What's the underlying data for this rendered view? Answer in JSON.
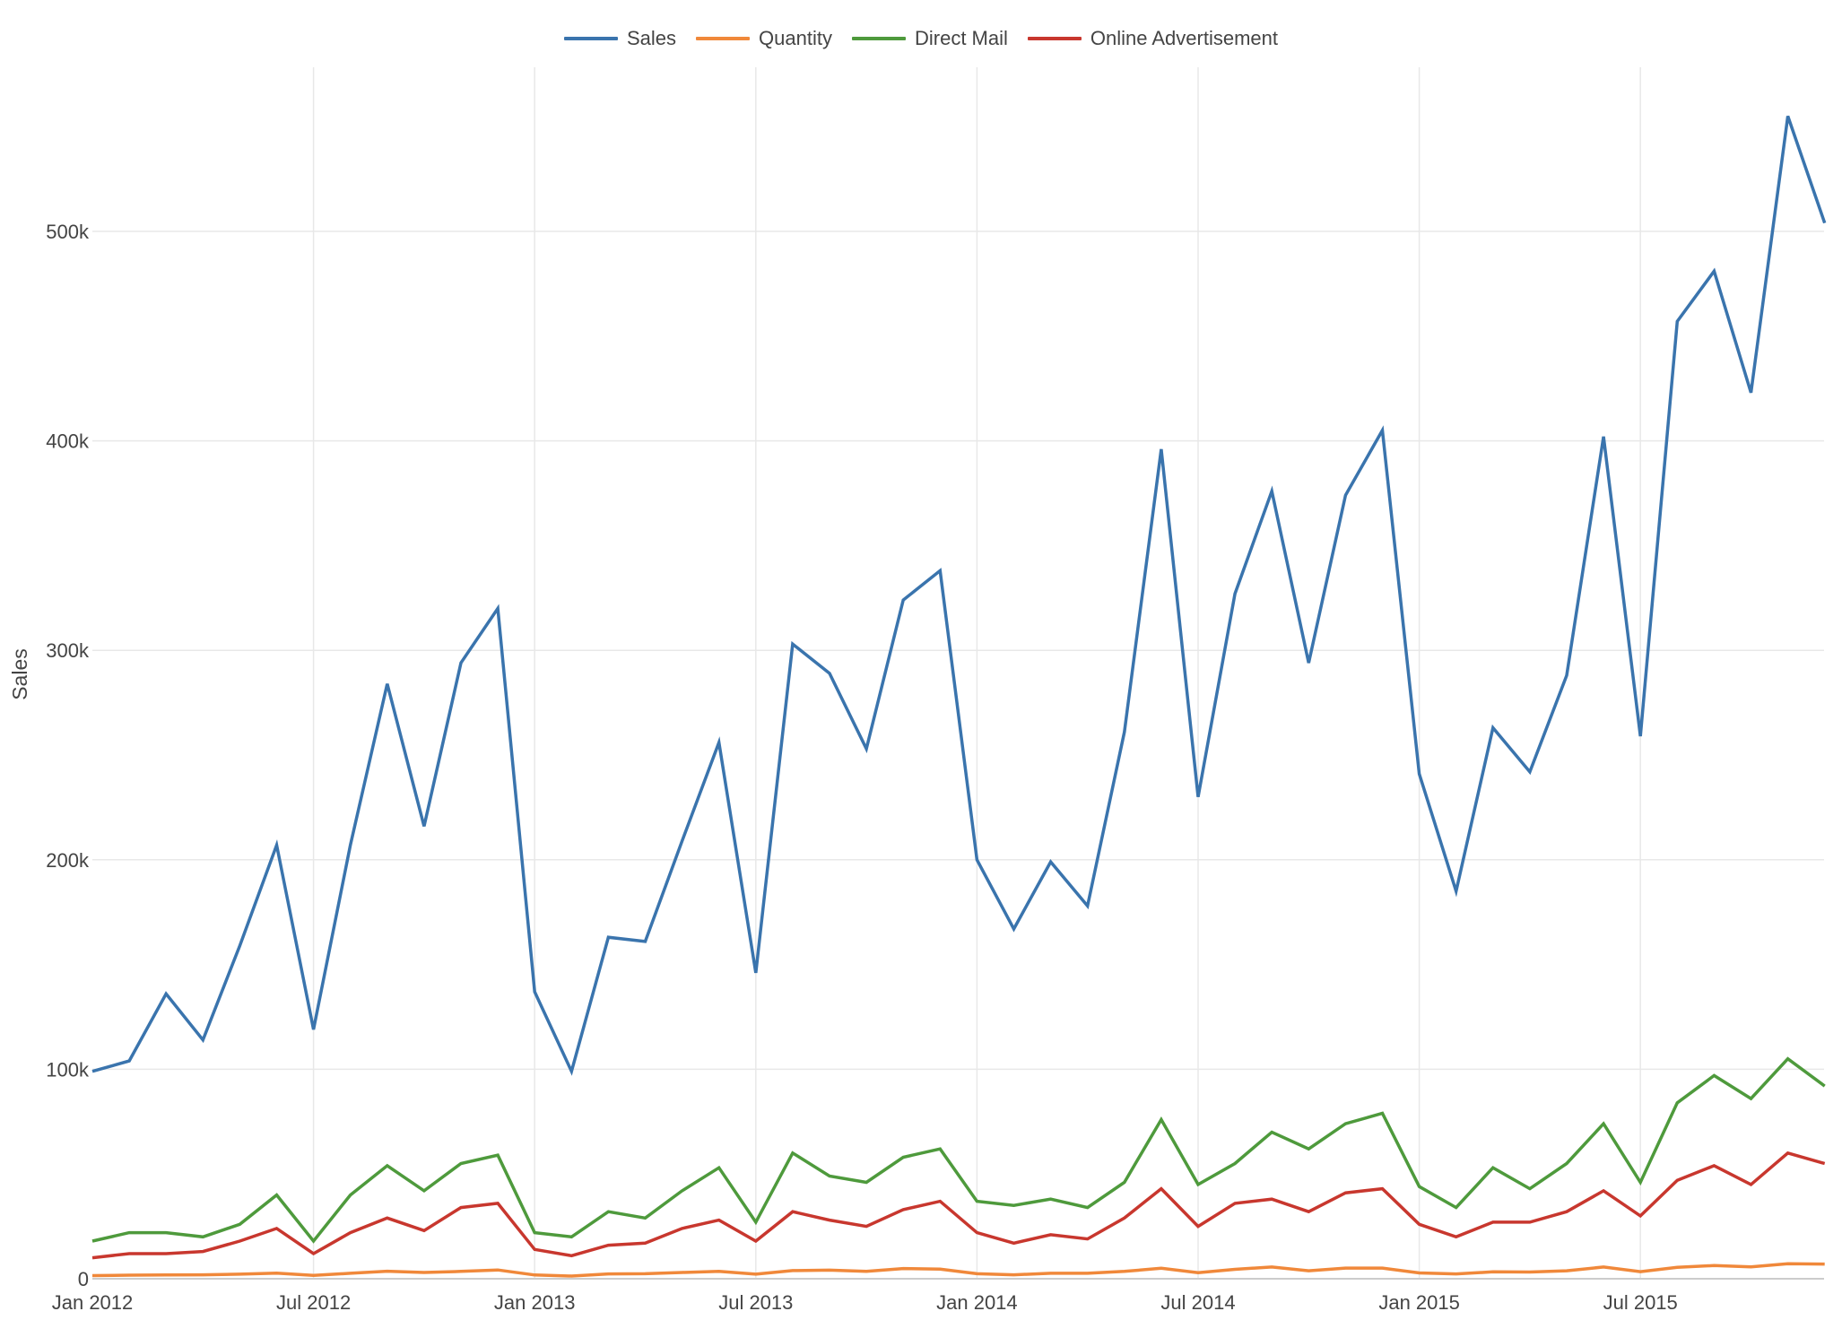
{
  "legend": {
    "items": [
      {
        "label": "Sales",
        "color": "#3a74ad"
      },
      {
        "label": "Quantity",
        "color": "#f0883a"
      },
      {
        "label": "Direct Mail",
        "color": "#4e9a3c"
      },
      {
        "label": "Online Advertisement",
        "color": "#c8372e"
      }
    ]
  },
  "axes": {
    "ylabel": "Sales",
    "yticks": [
      "0",
      "100k",
      "200k",
      "300k",
      "400k",
      "500k"
    ],
    "xticks": [
      "Jan 2012",
      "Jul 2012",
      "Jan 2013",
      "Jul 2013",
      "Jan 2014",
      "Jul 2014",
      "Jan 2015",
      "Jul 2015"
    ]
  },
  "chart_data": {
    "type": "line",
    "title": "",
    "xlabel": "",
    "ylabel": "Sales",
    "ylim": [
      0,
      560000
    ],
    "grid": true,
    "legend_position": "top-center",
    "x": [
      "2012-01",
      "2012-02",
      "2012-03",
      "2012-04",
      "2012-05",
      "2012-06",
      "2012-07",
      "2012-08",
      "2012-09",
      "2012-10",
      "2012-11",
      "2012-12",
      "2013-01",
      "2013-02",
      "2013-03",
      "2013-04",
      "2013-05",
      "2013-06",
      "2013-07",
      "2013-08",
      "2013-09",
      "2013-10",
      "2013-11",
      "2013-12",
      "2014-01",
      "2014-02",
      "2014-03",
      "2014-04",
      "2014-05",
      "2014-06",
      "2014-07",
      "2014-08",
      "2014-09",
      "2014-10",
      "2014-11",
      "2014-12",
      "2015-01",
      "2015-02",
      "2015-03",
      "2015-04",
      "2015-05",
      "2015-06",
      "2015-07",
      "2015-08",
      "2015-09",
      "2015-10",
      "2015-11",
      "2015-12"
    ],
    "x_tick_labels": [
      "Jan 2012",
      "Jul 2012",
      "Jan 2013",
      "Jul 2013",
      "Jan 2014",
      "Jul 2014",
      "Jan 2015",
      "Jul 2015"
    ],
    "y_tick_labels": [
      "0",
      "100k",
      "200k",
      "300k",
      "400k",
      "500k"
    ],
    "series": [
      {
        "name": "Sales",
        "color": "#3a74ad",
        "values": [
          99000,
          104000,
          136000,
          114000,
          159000,
          207000,
          119000,
          207000,
          284000,
          216000,
          294000,
          320000,
          137000,
          99000,
          163000,
          161000,
          209000,
          256000,
          146000,
          303000,
          289000,
          253000,
          324000,
          338000,
          200000,
          167000,
          199000,
          178000,
          261000,
          396000,
          230000,
          327000,
          376000,
          294000,
          374000,
          405000,
          241000,
          185000,
          263000,
          242000,
          288000,
          402000,
          259000,
          457000,
          481000,
          423000,
          555000,
          504000
        ]
      },
      {
        "name": "Quantity",
        "color": "#f0883a",
        "values": [
          1500,
          1700,
          1800,
          1900,
          2200,
          2700,
          1600,
          2600,
          3600,
          3000,
          3500,
          4200,
          1800,
          1300,
          2300,
          2400,
          3000,
          3500,
          2200,
          3900,
          4100,
          3500,
          4900,
          4600,
          2400,
          1900,
          2600,
          2600,
          3500,
          5000,
          2900,
          4500,
          5600,
          3800,
          5100,
          5100,
          2800,
          2300,
          3300,
          3200,
          3800,
          5600,
          3400,
          5500,
          6300,
          5700,
          7200,
          7000
        ]
      },
      {
        "name": "Direct Mail",
        "color": "#4e9a3c",
        "values": [
          18000,
          22000,
          22000,
          20000,
          26000,
          40000,
          18000,
          40000,
          54000,
          42000,
          55000,
          59000,
          22000,
          20000,
          32000,
          29000,
          42000,
          53000,
          27000,
          60000,
          49000,
          46000,
          58000,
          62000,
          37000,
          35000,
          38000,
          34000,
          46000,
          76000,
          45000,
          55000,
          70000,
          62000,
          74000,
          79000,
          44000,
          34000,
          53000,
          43000,
          55000,
          74000,
          46000,
          84000,
          97000,
          86000,
          105000,
          92000
        ]
      },
      {
        "name": "Online Advertisement",
        "color": "#c8372e",
        "values": [
          10000,
          12000,
          12000,
          13000,
          18000,
          24000,
          12000,
          22000,
          29000,
          23000,
          34000,
          36000,
          14000,
          11000,
          16000,
          17000,
          24000,
          28000,
          18000,
          32000,
          28000,
          25000,
          33000,
          37000,
          22000,
          17000,
          21000,
          19000,
          29000,
          43000,
          25000,
          36000,
          38000,
          32000,
          41000,
          43000,
          26000,
          20000,
          27000,
          27000,
          32000,
          42000,
          30000,
          47000,
          54000,
          45000,
          60000,
          55000
        ]
      }
    ]
  }
}
